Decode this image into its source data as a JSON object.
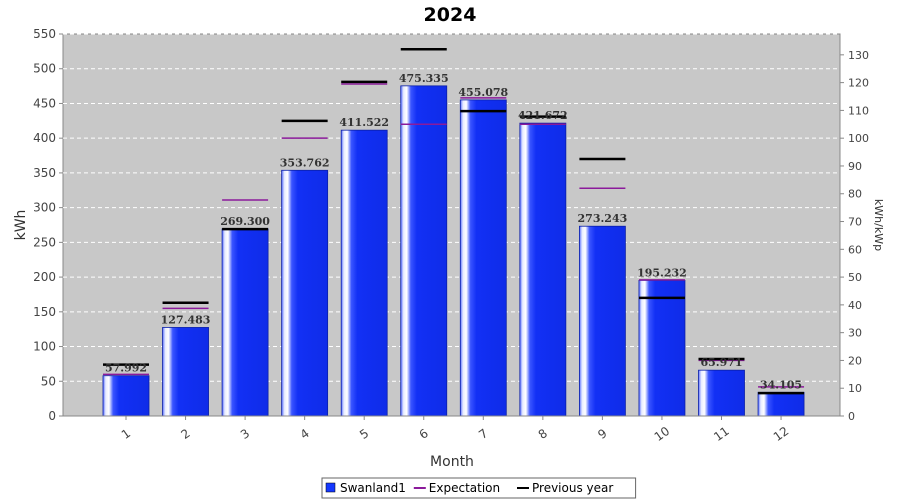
{
  "chart_data": {
    "type": "bar",
    "title": "2024",
    "xlabel": "Month",
    "ylabel": "kWh",
    "y2label": "kWh/kWp",
    "ylim": [
      0,
      550
    ],
    "y2lim": [
      0,
      137.5
    ],
    "yticks": [
      0,
      50,
      100,
      150,
      200,
      250,
      300,
      350,
      400,
      450,
      500,
      550
    ],
    "y2ticks": [
      0,
      10,
      20,
      30,
      40,
      50,
      60,
      70,
      80,
      90,
      100,
      110,
      120,
      130
    ],
    "grid": true,
    "legend_position": "bottom",
    "categories": [
      "1",
      "2",
      "3",
      "4",
      "5",
      "6",
      "7",
      "8",
      "9",
      "10",
      "11",
      "12"
    ],
    "series": [
      {
        "name": "Swanland1",
        "kind": "bar",
        "color": "#1438ff",
        "values": [
          57.992,
          127.483,
          269.3,
          353.762,
          411.522,
          475.335,
          455.078,
          421.672,
          273.243,
          195.232,
          65.971,
          34.105
        ],
        "labels": [
          "57.992",
          "127.483",
          "269.300",
          "353.762",
          "411.522",
          "475.335",
          "455.078",
          "421.672",
          "273.243",
          "195.232",
          "65.971",
          "34.105"
        ]
      },
      {
        "name": "Expectation",
        "kind": "marker",
        "color": "#8b1a9b",
        "values": [
          60,
          155,
          311,
          400,
          478,
          420,
          458,
          420,
          328,
          196,
          80,
          42
        ]
      },
      {
        "name": "Previous year",
        "kind": "marker",
        "color": "#000000",
        "values": [
          74,
          163,
          269,
          425,
          481,
          528,
          439,
          431,
          370,
          170,
          82,
          33
        ]
      }
    ]
  },
  "legend": {
    "items": [
      {
        "name": "Swanland1",
        "color": "#1438ff",
        "icon": "square-icon"
      },
      {
        "name": "Expectation",
        "color": "#8b1a9b",
        "icon": "line-icon"
      },
      {
        "name": "Previous year",
        "color": "#000000",
        "icon": "line-icon"
      }
    ]
  }
}
